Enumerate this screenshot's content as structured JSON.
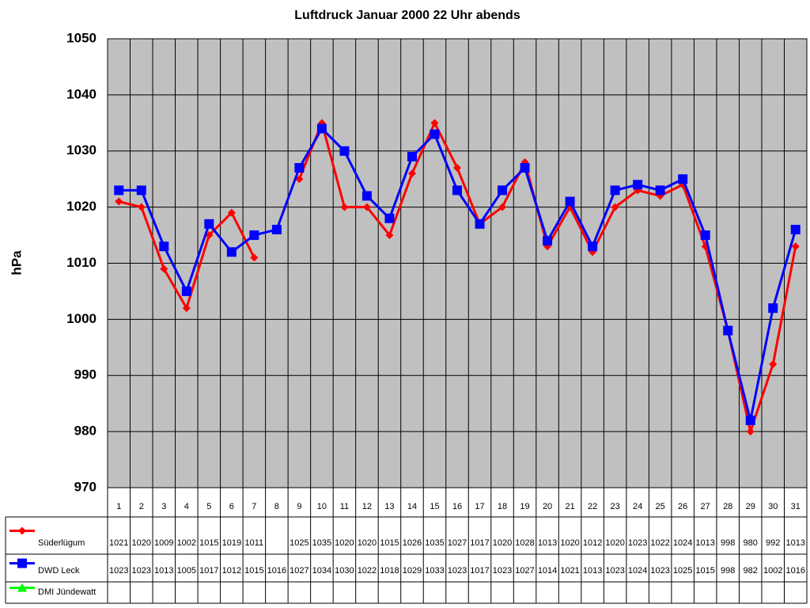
{
  "chart_data": {
    "type": "line",
    "title": "Luftdruck Januar 2000 22 Uhr abends",
    "y_label": "hPa",
    "categories": [
      "1",
      "2",
      "3",
      "4",
      "5",
      "6",
      "7",
      "8",
      "9",
      "10",
      "11",
      "12",
      "13",
      "14",
      "15",
      "16",
      "17",
      "18",
      "19",
      "20",
      "21",
      "22",
      "23",
      "24",
      "25",
      "26",
      "27",
      "28",
      "29",
      "30",
      "31"
    ],
    "series": [
      {
        "name": "Süderlügum",
        "color": "#ff0000",
        "marker": "diamond",
        "values": [
          1021,
          1020,
          1009,
          1002,
          1015,
          1019,
          1011,
          null,
          1025,
          1035,
          1020,
          1020,
          1015,
          1026,
          1035,
          1027,
          1017,
          1020,
          1028,
          1013,
          1020,
          1012,
          1020,
          1023,
          1022,
          1024,
          1013,
          998,
          980,
          992,
          1013
        ]
      },
      {
        "name": "DWD Leck",
        "color": "#0000ff",
        "marker": "square",
        "values": [
          1023,
          1023,
          1013,
          1005,
          1017,
          1012,
          1015,
          1016,
          1027,
          1034,
          1030,
          1022,
          1018,
          1029,
          1033,
          1023,
          1017,
          1023,
          1027,
          1014,
          1021,
          1013,
          1023,
          1024,
          1023,
          1025,
          1015,
          998,
          982,
          1002,
          1016
        ]
      },
      {
        "name": "DMI Jündewatt",
        "color": "#00ff00",
        "marker": "triangle",
        "values": [
          null,
          null,
          null,
          null,
          null,
          null,
          null,
          null,
          null,
          null,
          null,
          null,
          null,
          null,
          null,
          null,
          null,
          null,
          null,
          null,
          null,
          null,
          null,
          null,
          null,
          null,
          null,
          null,
          null,
          null,
          null
        ]
      }
    ],
    "ylim": [
      970,
      1050
    ],
    "yticks": [
      970,
      980,
      990,
      1000,
      1010,
      1020,
      1030,
      1040,
      1050
    ],
    "grid": true,
    "data_table": true
  }
}
